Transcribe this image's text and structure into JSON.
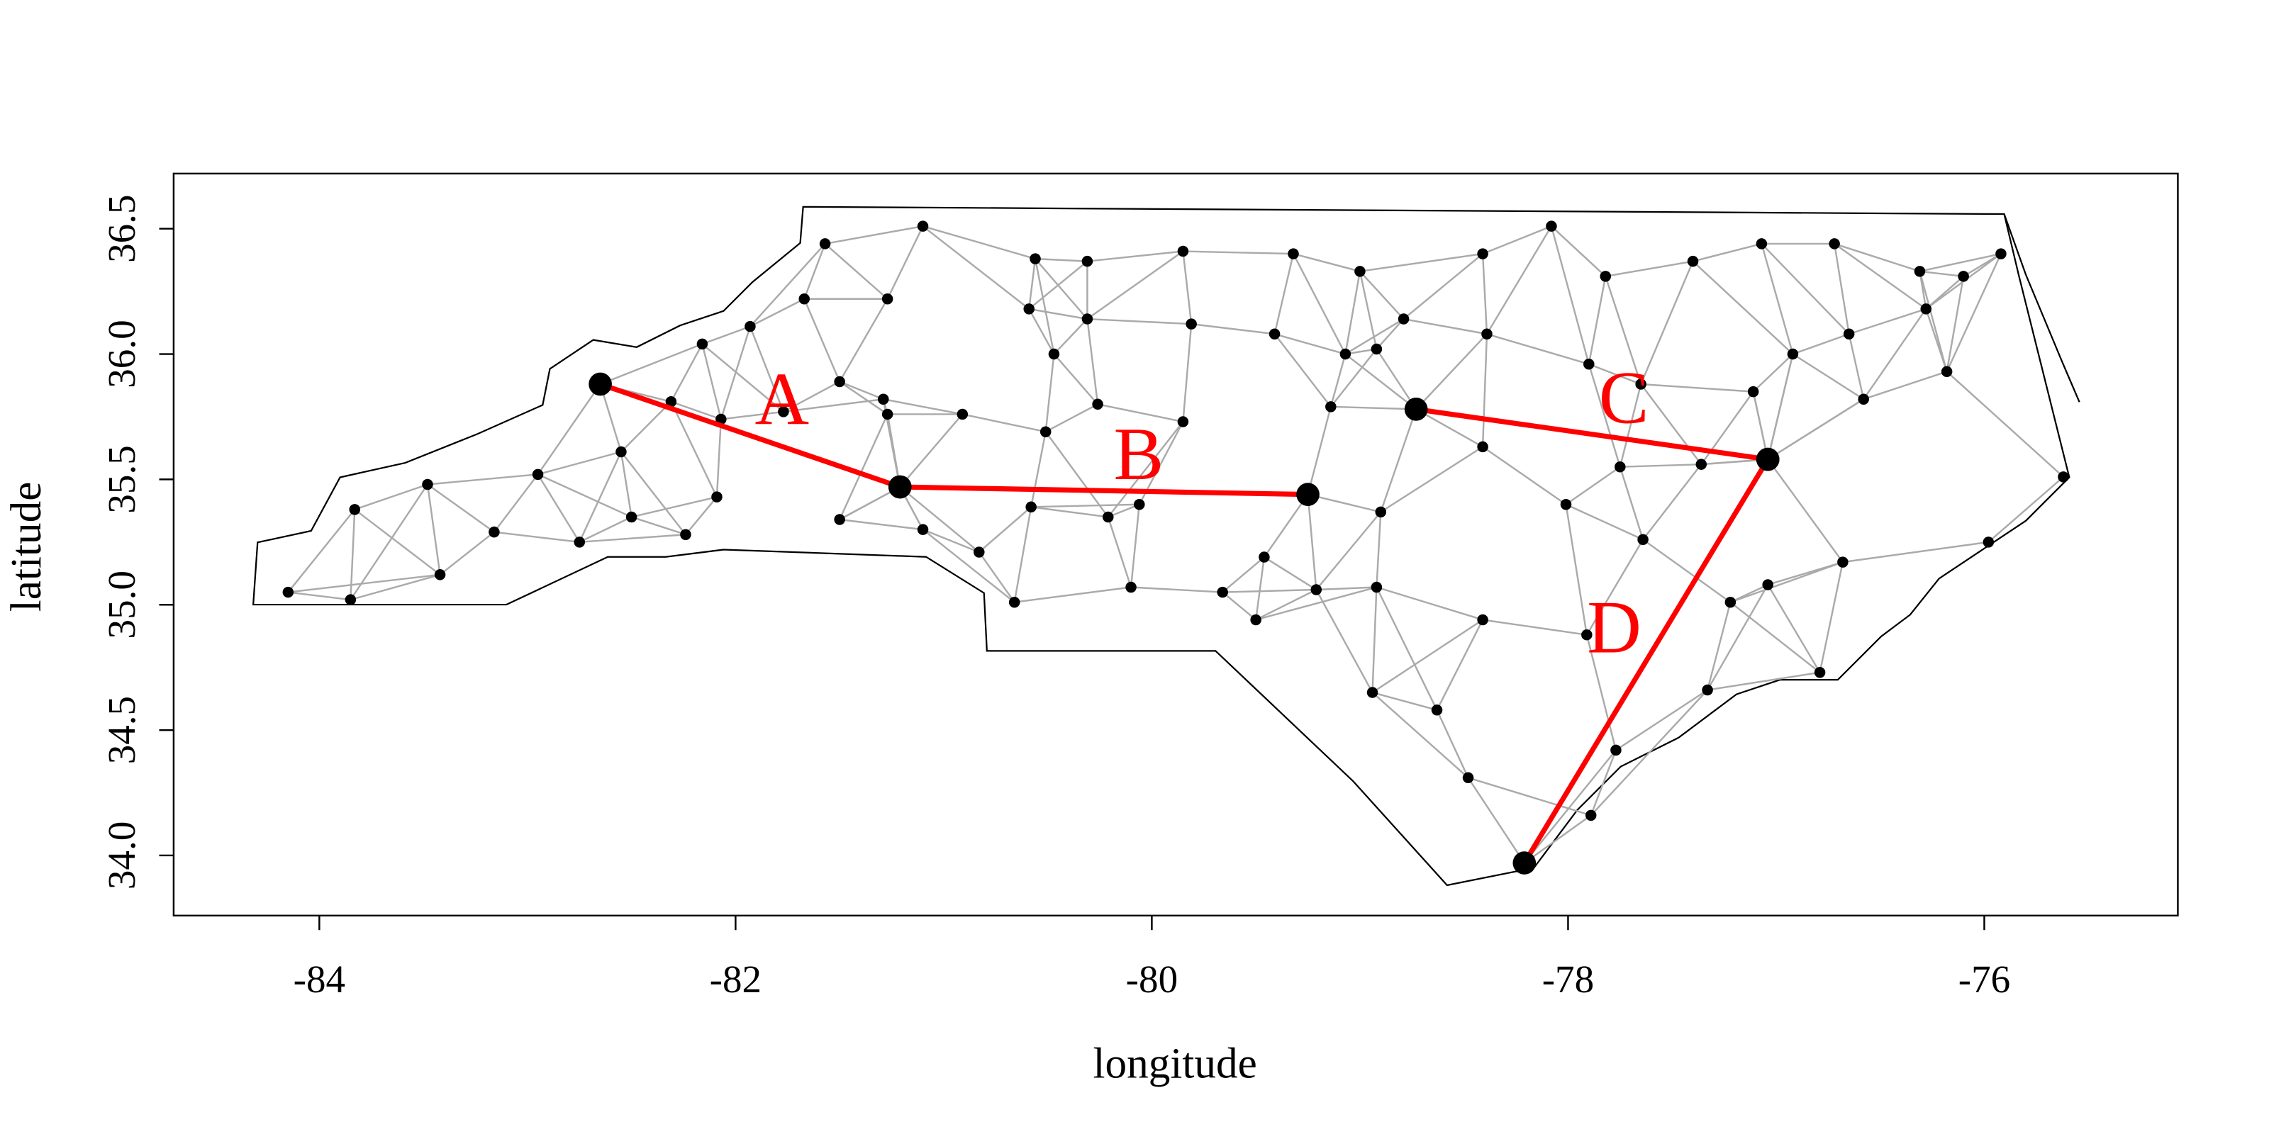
{
  "chart_data": {
    "type": "scatter",
    "xlabel": "longitude",
    "ylabel": "latitude",
    "xlim": [
      -84.7,
      -75.07
    ],
    "ylim": [
      33.76,
      36.72
    ],
    "xticks": [
      -84,
      -82,
      -80,
      -78,
      -76
    ],
    "yticks": [
      {
        "value": 34,
        "label": "34.0"
      },
      34.5,
      {
        "value": 35,
        "label": "35.0"
      },
      35.5,
      {
        "value": 36,
        "label": "36.0"
      },
      36.5
    ],
    "series": [
      {
        "color": "#000000",
        "x": [
          -81.57,
          -81.1,
          -80.56,
          -80.31,
          -79.85,
          -79.32,
          -79.0,
          -78.41,
          -78.08,
          -77.82,
          -77.4,
          -77.07,
          -76.72,
          -76.31,
          -76.1,
          -75.92,
          -81.67,
          -81.27,
          -80.59,
          -80.31,
          -79.81,
          -79.41,
          -78.79,
          -78.39,
          -77.9,
          -76.92,
          -76.65,
          -76.28,
          -82.16,
          -81.93,
          -81.5,
          -80.47,
          -79.07,
          -78.92,
          -77.11,
          -76.18,
          -82.31,
          -82.07,
          -81.77,
          -81.29,
          -81.27,
          -80.91,
          -80.51,
          -80.26,
          -79.85,
          -79.14,
          -77.65,
          -76.58,
          -83.48,
          -82.95,
          -82.55,
          -82.09,
          -81.5,
          -81.1,
          -80.58,
          -80.21,
          -80.06,
          -78.9,
          -78.41,
          -77.75,
          -77.36,
          -75.62,
          -83.83,
          -83.16,
          -82.75,
          -82.5,
          -82.24,
          -80.83,
          -79.46,
          -78.01,
          -77.64,
          -76.68,
          -75.98,
          -84.15,
          -83.85,
          -83.42,
          -80.66,
          -80.1,
          -79.66,
          -79.5,
          -79.21,
          -78.92,
          -78.41,
          -77.91,
          -77.22,
          -77.04,
          -78.94,
          -78.63,
          -77.33,
          -76.79,
          -78.48,
          -77.77,
          -77.89
        ],
        "y": [
          36.44,
          36.51,
          36.38,
          36.37,
          36.41,
          36.4,
          36.33,
          36.4,
          36.51,
          36.31,
          36.37,
          36.44,
          36.44,
          36.33,
          36.31,
          36.4,
          36.22,
          36.22,
          36.18,
          36.14,
          36.12,
          36.08,
          36.14,
          36.08,
          35.96,
          36.0,
          36.08,
          36.18,
          36.04,
          36.11,
          35.89,
          36.0,
          36.0,
          36.02,
          35.85,
          35.93,
          35.81,
          35.74,
          35.77,
          35.82,
          35.76,
          35.76,
          35.69,
          35.8,
          35.73,
          35.79,
          35.88,
          35.82,
          35.48,
          35.52,
          35.61,
          35.43,
          35.34,
          35.3,
          35.39,
          35.35,
          35.4,
          35.37,
          35.63,
          35.55,
          35.56,
          35.51,
          35.38,
          35.29,
          35.25,
          35.35,
          35.28,
          35.21,
          35.19,
          35.4,
          35.26,
          35.17,
          35.25,
          35.05,
          35.02,
          35.12,
          35.01,
          35.07,
          35.05,
          34.94,
          35.06,
          35.07,
          34.94,
          34.88,
          35.01,
          35.08,
          34.65,
          34.58,
          34.66,
          34.73,
          34.31,
          34.42,
          34.16
        ]
      }
    ],
    "segments": [
      {
        "label": "A",
        "color": "#ff0000",
        "x": [
          -82.65,
          -81.21
        ],
        "y": [
          35.88,
          35.47
        ]
      },
      {
        "label": "B",
        "color": "#ff0000",
        "x": [
          -81.21,
          -79.25
        ],
        "y": [
          35.47,
          35.44
        ]
      },
      {
        "label": "C",
        "color": "#ff0000",
        "x": [
          -78.73,
          -77.04
        ],
        "y": [
          35.78,
          35.58
        ]
      },
      {
        "label": "D",
        "color": "#ff0000",
        "x": [
          -77.04,
          -78.21
        ],
        "y": [
          35.58,
          33.97
        ]
      }
    ]
  }
}
